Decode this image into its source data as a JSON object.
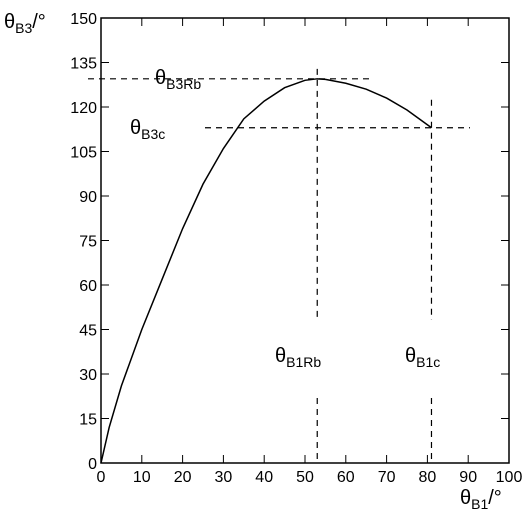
{
  "chart_data": {
    "type": "line",
    "x_label": {
      "symbol": "θ",
      "subscript": "B1",
      "unit": "/°"
    },
    "y_label": {
      "symbol": "θ",
      "subscript": "B3",
      "unit": "/°"
    },
    "x": [
      0,
      2,
      5,
      10,
      15,
      20,
      25,
      30,
      35,
      40,
      45,
      50,
      53,
      55,
      60,
      65,
      70,
      75,
      78,
      81
    ],
    "series": [
      {
        "color": "#000000",
        "values": [
          0,
          12,
          26,
          45,
          62,
          79,
          94,
          106,
          116,
          122,
          126.5,
          129,
          129.5,
          129.3,
          128,
          126,
          123,
          119,
          116,
          113
        ]
      }
    ],
    "xlim": [
      0,
      100
    ],
    "xticks": [
      0,
      10,
      20,
      30,
      40,
      50,
      60,
      70,
      80,
      90,
      100
    ],
    "ylim": [
      0,
      150
    ],
    "yticks": [
      0,
      15,
      30,
      45,
      60,
      75,
      90,
      105,
      120,
      135,
      150
    ],
    "reference_points": [
      {
        "x": 53,
        "y": 129.5,
        "x_name": {
          "symbol": "θ",
          "subscript": "B1Rb"
        },
        "y_name": {
          "symbol": "θ",
          "subscript": "B3Rb"
        }
      },
      {
        "x": 81,
        "y": 113,
        "x_name": {
          "symbol": "θ",
          "subscript": "B1c"
        },
        "y_name": {
          "symbol": "θ",
          "subscript": "B3c"
        }
      }
    ]
  }
}
